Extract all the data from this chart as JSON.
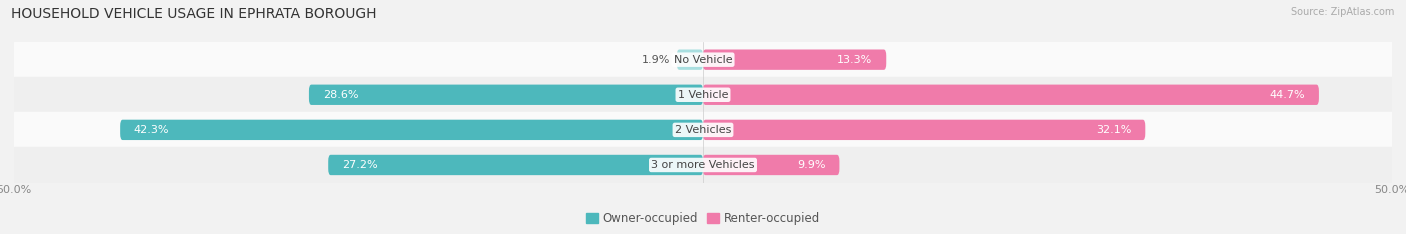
{
  "title": "HOUSEHOLD VEHICLE USAGE IN EPHRATA BOROUGH",
  "source": "Source: ZipAtlas.com",
  "categories": [
    "No Vehicle",
    "1 Vehicle",
    "2 Vehicles",
    "3 or more Vehicles"
  ],
  "owner_values": [
    1.9,
    28.6,
    42.3,
    27.2
  ],
  "renter_values": [
    13.3,
    44.7,
    32.1,
    9.9
  ],
  "owner_color": "#4db8bc",
  "renter_color": "#f07baa",
  "owner_color_light": "#a8dfe0",
  "renter_color_light": "#f7b8d3",
  "background_color": "#f2f2f2",
  "row_bg_even": "#fafafa",
  "row_bg_odd": "#efefef",
  "xlim": [
    -50,
    50
  ],
  "legend_owner": "Owner-occupied",
  "legend_renter": "Renter-occupied",
  "title_fontsize": 10,
  "label_fontsize": 8,
  "cat_fontsize": 8,
  "bar_height": 0.58,
  "inside_label_threshold": 8
}
